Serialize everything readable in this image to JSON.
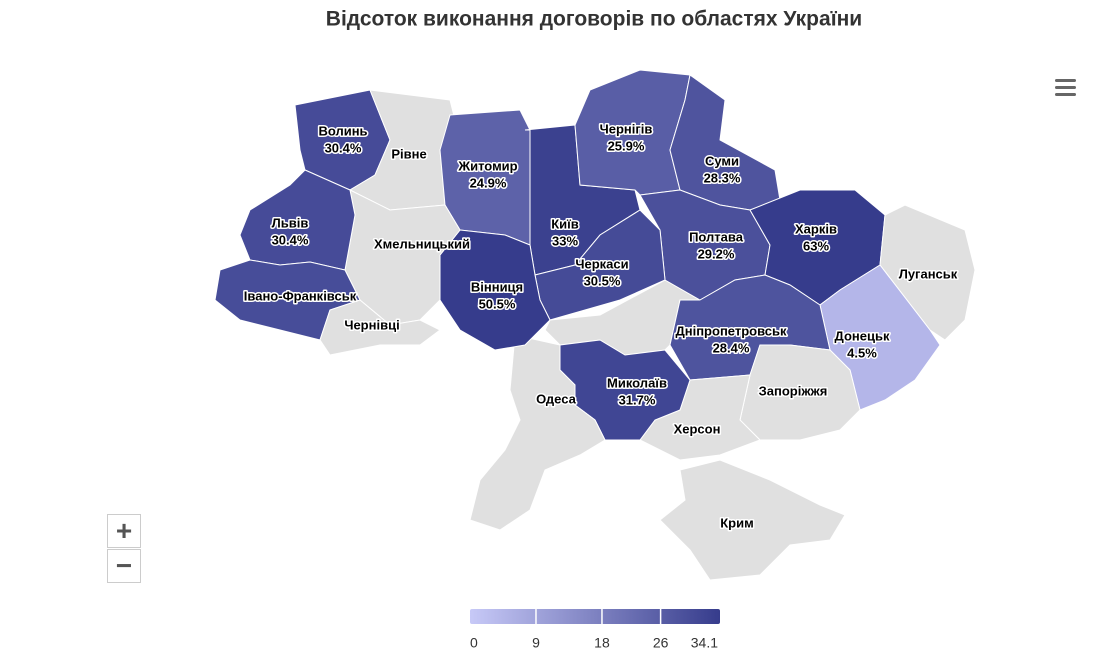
{
  "title": "Відсоток виконання договорів по областях України",
  "regions": [
    {
      "name": "Волинь",
      "value": 30.4,
      "value_label": "30.4%"
    },
    {
      "name": "Рівне",
      "value": null
    },
    {
      "name": "Житомир",
      "value": 24.9,
      "value_label": "24.9%"
    },
    {
      "name": "Київ",
      "value": 33,
      "value_label": "33%"
    },
    {
      "name": "Чернігів",
      "value": 25.9,
      "value_label": "25.9%"
    },
    {
      "name": "Суми",
      "value": 28.3,
      "value_label": "28.3%"
    },
    {
      "name": "Полтава",
      "value": 29.2,
      "value_label": "29.2%"
    },
    {
      "name": "Харків",
      "value": 63,
      "value_label": "63%"
    },
    {
      "name": "Луганськ",
      "value": null
    },
    {
      "name": "Донецьк",
      "value": 4.5,
      "value_label": "4.5%"
    },
    {
      "name": "Дніпропетровськ",
      "value": 28.4,
      "value_label": "28.4%"
    },
    {
      "name": "Запоріжжя",
      "value": null
    },
    {
      "name": "Херсон",
      "value": null
    },
    {
      "name": "Крим",
      "value": null
    },
    {
      "name": "Миколаїв",
      "value": 31.7,
      "value_label": "31.7%"
    },
    {
      "name": "Одеса",
      "value": null
    },
    {
      "name": "Черкаси",
      "value": 30.5,
      "value_label": "30.5%"
    },
    {
      "name": "Вінниця",
      "value": 50.5,
      "value_label": "50.5%"
    },
    {
      "name": "Хмельницький",
      "value": null
    },
    {
      "name": "Львів",
      "value": 30.4,
      "value_label": "30.4%"
    },
    {
      "name": "Івано-Франківськ",
      "value": 30
    },
    {
      "name": "Чернівці",
      "value": null
    }
  ],
  "color_axis": {
    "min": 0,
    "max": 34.1,
    "ticks": [
      0,
      9,
      18,
      26,
      34.1
    ],
    "colors": [
      "#c7c9f7",
      "#363c8c"
    ]
  },
  "controls": {
    "zoom_in": "+",
    "zoom_out": "−"
  }
}
